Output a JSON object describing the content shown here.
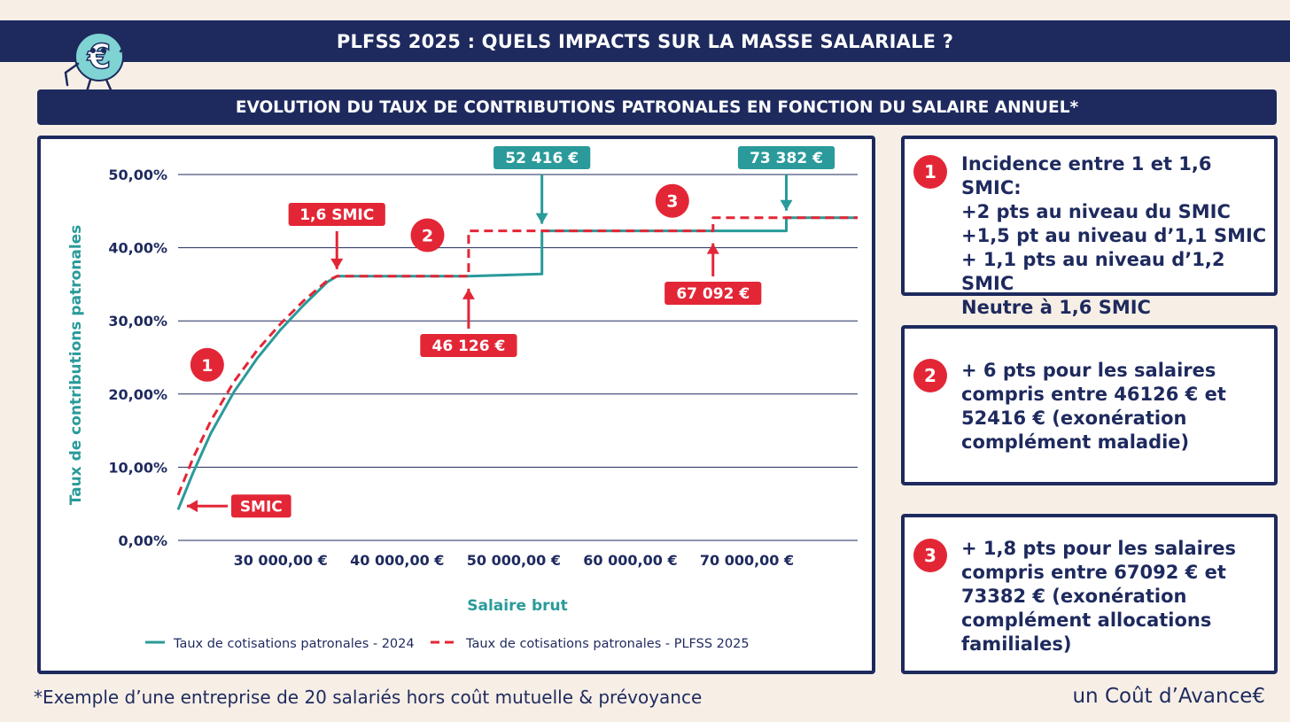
{
  "header": {
    "title": "PLFSS 2025 : QUELS IMPACTS SUR LA MASSE SALARIALE ?"
  },
  "subheader": {
    "title": "EVOLUTION DU TAUX DE CONTRIBUTIONS PATRONALES EN FONCTION DU SALAIRE ANNUEL*"
  },
  "colors": {
    "navy": "#1e2a5e",
    "teal": "#2a9a9a",
    "red": "#e32636",
    "background": "#f7efe6"
  },
  "chart_data": {
    "type": "line",
    "xlabel": "Salaire brut",
    "ylabel": "Taux de contributions patronales",
    "xlim": [
      21203,
      79500
    ],
    "ylim": [
      0,
      50
    ],
    "x_ticks": [
      30000,
      40000,
      50000,
      60000,
      70000
    ],
    "x_tick_labels": [
      "30 000,00 €",
      "40 000,00 €",
      "50 000,00 €",
      "60 000,00 €",
      "70 000,00 €"
    ],
    "y_ticks": [
      0,
      10,
      20,
      30,
      40,
      50
    ],
    "y_tick_labels": [
      "0,00%",
      "10,00%",
      "20,00%",
      "30,00%",
      "40,00%",
      "50,00%"
    ],
    "grid": true,
    "legend_position": "bottom",
    "series": [
      {
        "name": "Taux de cotisations patronales - 2024",
        "color": "#2a9a9a",
        "dash": false,
        "points": [
          [
            21203,
            4.2
          ],
          [
            22500,
            9.3
          ],
          [
            24000,
            14.6
          ],
          [
            26000,
            20.3
          ],
          [
            28000,
            24.9
          ],
          [
            30000,
            28.8
          ],
          [
            32000,
            32.2
          ],
          [
            34000,
            35.3
          ],
          [
            34825,
            36.1
          ],
          [
            46126,
            36.1
          ],
          [
            52416,
            36.4
          ],
          [
            52416,
            42.3
          ],
          [
            73382,
            42.3
          ],
          [
            73382,
            44.1
          ],
          [
            79500,
            44.1
          ]
        ]
      },
      {
        "name": "Taux de cotisations patronales - PLFSS 2025",
        "color": "#e32636",
        "dash": true,
        "points": [
          [
            21203,
            6.2
          ],
          [
            22500,
            11.3
          ],
          [
            24000,
            16.3
          ],
          [
            26000,
            21.7
          ],
          [
            28000,
            26.0
          ],
          [
            30000,
            29.6
          ],
          [
            32000,
            32.8
          ],
          [
            34000,
            35.5
          ],
          [
            34825,
            36.1
          ],
          [
            46126,
            36.1
          ],
          [
            46126,
            42.3
          ],
          [
            67092,
            42.3
          ],
          [
            67092,
            44.1
          ],
          [
            79500,
            44.1
          ]
        ]
      }
    ],
    "annotations": [
      {
        "label": "SMIC",
        "color": "#e32636",
        "x": 21203,
        "y": 4.2,
        "arrow": "left"
      },
      {
        "label": "1,6 SMIC",
        "color": "#e32636",
        "x": 34825,
        "y": 36.1,
        "arrow": "down"
      },
      {
        "label": "46 126 €",
        "color": "#e32636",
        "x": 46126,
        "y": 36.1,
        "arrow": "up"
      },
      {
        "label": "52 416 €",
        "color": "#2a9a9a",
        "x": 52416,
        "y": 42.3,
        "arrow": "down"
      },
      {
        "label": "67 092 €",
        "color": "#e32636",
        "x": 67092,
        "y": 42.3,
        "arrow": "up"
      },
      {
        "label": "73 382 €",
        "color": "#2a9a9a",
        "x": 73382,
        "y": 44.1,
        "arrow": "down"
      }
    ],
    "markers": [
      {
        "label": "1",
        "x": 23700,
        "y": 24
      },
      {
        "label": "2",
        "x": 42600,
        "y": 41.7
      },
      {
        "label": "3",
        "x": 63600,
        "y": 46.4
      }
    ]
  },
  "info_boxes": [
    {
      "number": "1",
      "text": "Incidence entre 1 et 1,6 SMIC:\n+2 pts au niveau du SMIC\n+1,5 pt au niveau d’1,1 SMIC\n+ 1,1 pts au niveau d’1,2 SMIC\nNeutre à 1,6 SMIC"
    },
    {
      "number": "2",
      "text": "+ 6 pts pour les salaires\ncompris entre 46126 € et\n52416 € (exonération\ncomplément maladie)"
    },
    {
      "number": "3",
      "text": "+ 1,8 pts pour les salaires\ncompris entre 67092 € et\n73382 € (exonération\ncomplément allocations\nfamiliales)"
    }
  ],
  "footnote": "*Exemple d’une entreprise de 20 salariés hors coût mutuelle & prévoyance",
  "brand": "un Coût d’Avance€",
  "mascot": {
    "icon": "euro-mascot-icon"
  }
}
